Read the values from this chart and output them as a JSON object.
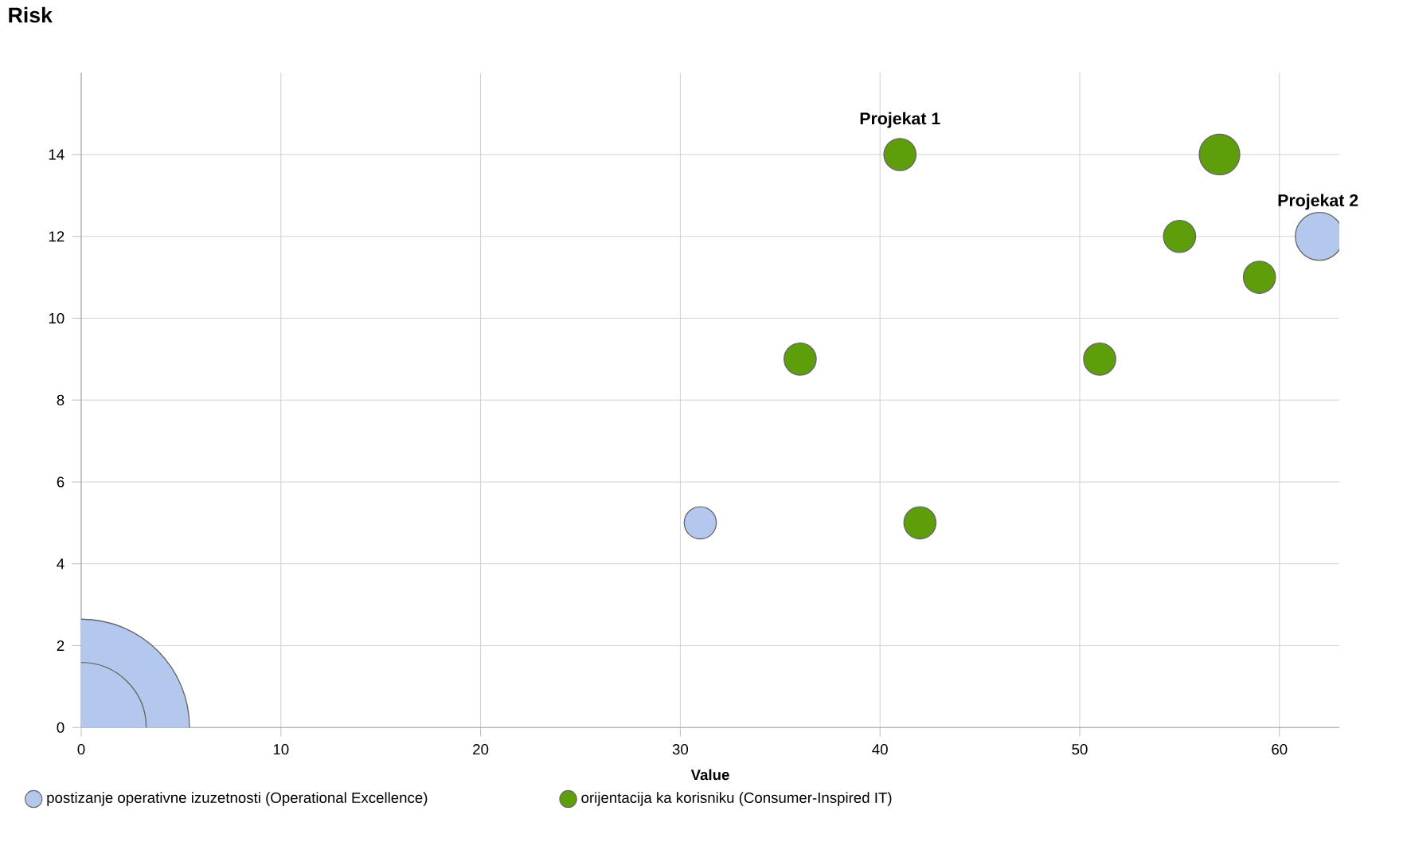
{
  "chart_data": {
    "type": "bubble",
    "xlabel": "Value",
    "ylabel": "Risk",
    "xlim": [
      0,
      63
    ],
    "ylim": [
      0,
      16
    ],
    "xticks": [
      0,
      10,
      20,
      30,
      40,
      50,
      60
    ],
    "yticks": [
      0,
      2,
      4,
      6,
      8,
      10,
      12,
      14
    ],
    "grid": true,
    "legend": "bottom",
    "series": [
      {
        "name": "postizanje operativne izuzetnosti (Operational Excellence)",
        "color": "#b4c8ee",
        "x": [
          0,
          0,
          31,
          62
        ],
        "values": [
          0,
          0,
          5,
          12
        ],
        "sizes": [
          0.36,
          1,
          0.022,
          0.049
        ]
      },
      {
        "name": "orijentacija ka korisniku (Consumer-Inspired IT)",
        "color": "#5e9e0a",
        "x": [
          41,
          36,
          42,
          51,
          55,
          59,
          57
        ],
        "values": [
          14,
          9,
          5,
          9,
          12,
          11,
          14
        ],
        "sizes": [
          0.022,
          0.022,
          0.022,
          0.022,
          0.022,
          0.022,
          0.035
        ]
      }
    ],
    "annotations": [
      {
        "text": "Projekat 1",
        "x": 41,
        "y": 14
      },
      {
        "text": "Projekat 2",
        "x": 62,
        "y": 12
      }
    ]
  }
}
